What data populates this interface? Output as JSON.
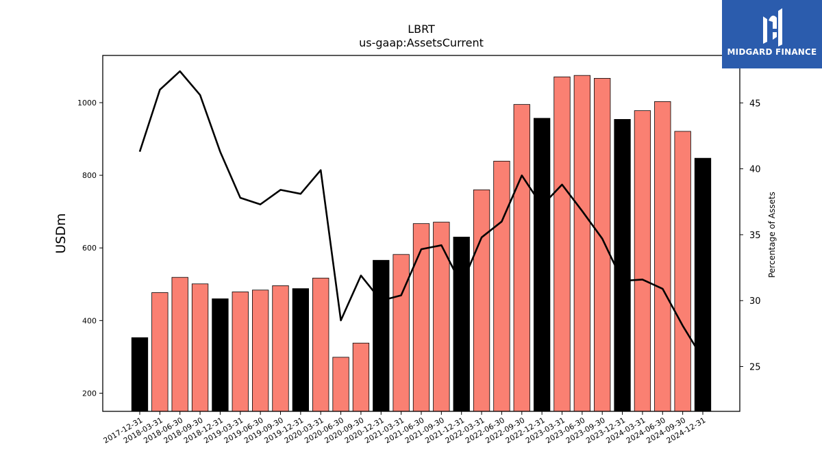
{
  "header": {
    "title": "LBRT",
    "subtitle": "us-gaap:AssetsCurrent"
  },
  "logo": {
    "text": "MIDGARD FINANCE",
    "background": "#2b5cad"
  },
  "chart_data": {
    "type": "bar",
    "categories": [
      "2017-12-31",
      "2018-03-31",
      "2018-06-30",
      "2018-09-30",
      "2018-12-31",
      "2019-03-31",
      "2019-06-30",
      "2019-09-30",
      "2019-12-31",
      "2020-03-31",
      "2020-06-30",
      "2020-09-30",
      "2020-12-31",
      "2021-03-31",
      "2021-06-30",
      "2021-09-30",
      "2021-12-31",
      "2022-03-31",
      "2022-06-30",
      "2022-09-30",
      "2022-12-31",
      "2023-03-31",
      "2023-06-30",
      "2023-09-30",
      "2023-12-31",
      "2024-03-31",
      "2024-06-30",
      "2024-09-30",
      "2024-12-31"
    ],
    "values": [
      353,
      477,
      519,
      501,
      460,
      479,
      484,
      496,
      488,
      517,
      299,
      338,
      566,
      582,
      667,
      671,
      630,
      760,
      839,
      995,
      957,
      1071,
      1075,
      1067,
      954,
      978,
      1003,
      921,
      847
    ],
    "bar_colors": {
      "annual": "#000000",
      "quarterly": "#fa8072"
    },
    "annual_categories": [
      "2017-12-31",
      "2018-12-31",
      "2019-12-31",
      "2020-12-31",
      "2021-12-31",
      "2022-12-31",
      "2023-12-31",
      "2024-12-31"
    ],
    "line_series": {
      "values": [
        41.3,
        46.0,
        47.4,
        45.6,
        41.3,
        37.8,
        37.3,
        38.4,
        38.1,
        39.9,
        28.5,
        31.9,
        30.0,
        30.4,
        33.9,
        34.2,
        31.2,
        34.8,
        36.0,
        39.5,
        37.2,
        38.8,
        36.8,
        34.7,
        31.5,
        31.6,
        30.9,
        28.1,
        25.6
      ],
      "color": "#000000"
    },
    "ylabel": "USDm",
    "y2label": "Percentage of Assets",
    "ylim": [
      150,
      1130
    ],
    "y2lim": [
      21.6,
      48.6
    ],
    "yticks": [
      200,
      400,
      600,
      800,
      1000
    ],
    "y2ticks": [
      25,
      30,
      35,
      40,
      45
    ],
    "grid": false
  }
}
